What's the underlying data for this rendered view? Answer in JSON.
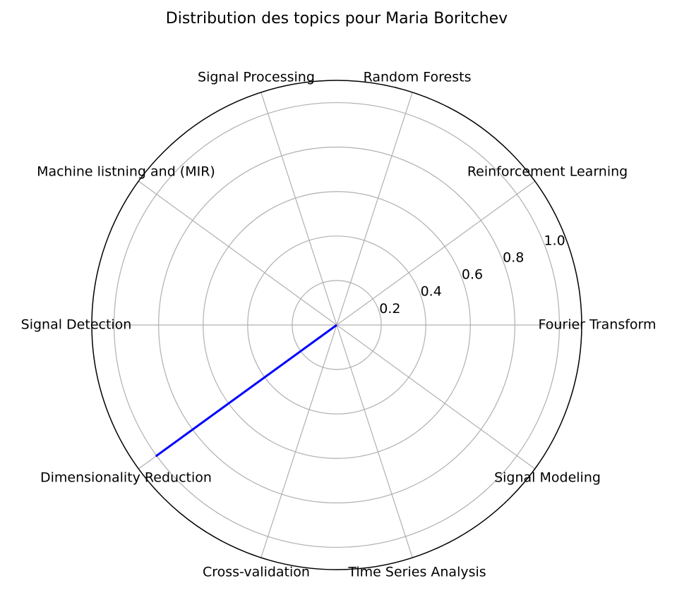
{
  "chart_data": {
    "type": "radar",
    "title": "Distribution des topics pour Maria Boritchev",
    "categories": [
      "Fourier Transform",
      "Reinforcement Learning",
      "Random Forests",
      "Signal Processing",
      "Machine listning and (MIR)",
      "Signal Detection",
      "Dimensionality Reduction",
      "Cross-validation",
      "Time Series Analysis",
      "Signal Modeling"
    ],
    "series": [
      {
        "values": [
          0,
          0,
          0,
          0,
          0,
          0,
          1.0,
          0,
          0,
          0
        ],
        "color": "#0000ff"
      }
    ],
    "rlim": [
      0,
      1.1
    ],
    "rticks": [
      0.2,
      0.4,
      0.6,
      0.8,
      1.0
    ],
    "rtick_labels": [
      "0.2",
      "0.4",
      "0.6",
      "0.8",
      "1.0"
    ],
    "grid": true,
    "grid_color": "#b0b0b0",
    "outline_color": "#000000"
  }
}
